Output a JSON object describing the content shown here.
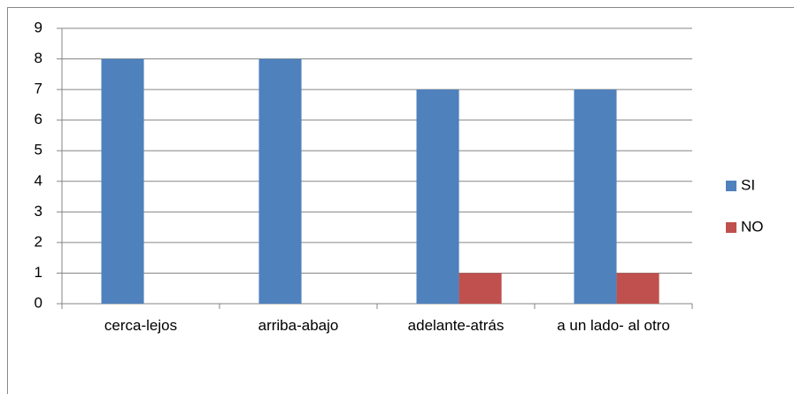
{
  "chart_data": {
    "type": "bar",
    "categories": [
      "cerca-lejos",
      "arriba-abajo",
      "adelante-atrás",
      "a un lado- al otro"
    ],
    "series": [
      {
        "name": "SI",
        "color": "#4f81bd",
        "values": [
          8,
          8,
          7,
          7
        ]
      },
      {
        "name": "NO",
        "color": "#c0504d",
        "values": [
          0,
          0,
          1,
          1
        ]
      }
    ],
    "ylim": [
      0,
      9
    ],
    "yticks": [
      0,
      1,
      2,
      3,
      4,
      5,
      6,
      7,
      8,
      9
    ],
    "grid": true,
    "legend": "right"
  }
}
